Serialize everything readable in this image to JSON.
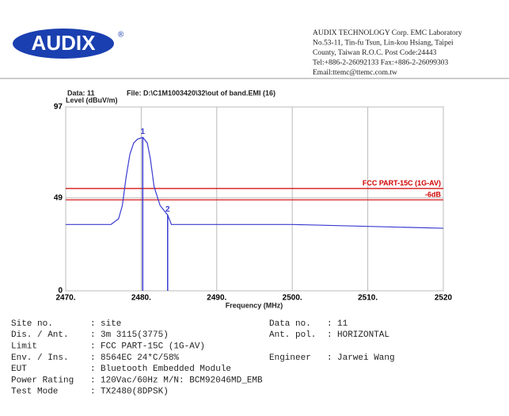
{
  "header": {
    "logo": "AUDIX",
    "registered": "®",
    "company": [
      "AUDIX TECHNOLOGY Corp.  EMC Laboratory",
      "No.53-11, Tin-fu Tsun, Lin-kou Hsiang, Taipei",
      "County, Taiwan R.O.C.  Post Code:24443",
      "Tel:+886-2-26092133  Fax:+886-2-26099303",
      "Email:ttemc@ttemc.com.tw"
    ]
  },
  "chart_data": {
    "type": "line",
    "data_label": "Data: 11",
    "file": "File: D:\\C1M1003420\\32\\out of band.EMI  (16)",
    "y_label": "Level (dBuV/m)",
    "x_label": "Frequency (MHz)",
    "xlim": [
      2470,
      2520
    ],
    "xticks": [
      {
        "value": 2470,
        "label": "2470."
      },
      {
        "value": 2480,
        "label": "2480."
      },
      {
        "value": 2490,
        "label": "2490."
      },
      {
        "value": 2500,
        "label": "2500."
      },
      {
        "value": 2510,
        "label": "2510."
      },
      {
        "value": 2520,
        "label": "2520"
      }
    ],
    "ylim": [
      0,
      97
    ],
    "yticks": [
      0,
      49,
      97
    ],
    "grid": true,
    "trace": {
      "color": "#3a3ad0",
      "x": [
        2470,
        2476,
        2477,
        2477.5,
        2478,
        2478.5,
        2479,
        2479.5,
        2480.2,
        2480.8,
        2481.2,
        2481.7,
        2482.5,
        2483.5,
        2484,
        2490,
        2500,
        2510,
        2520
      ],
      "values": [
        35,
        35,
        38,
        45,
        60,
        72,
        78,
        80,
        81,
        78,
        70,
        55,
        45,
        40,
        35,
        35,
        35,
        34,
        33
      ]
    },
    "limits": [
      {
        "name": "FCC PART-15C (1G-AV)",
        "value": 54,
        "color": "#d00000"
      },
      {
        "name": "-6dB",
        "value": 48,
        "color": "#d00000"
      }
    ],
    "markers": [
      {
        "label": "1",
        "x": 2480.2,
        "y": 81
      },
      {
        "label": "2",
        "x": 2483.5,
        "y": 40
      }
    ]
  },
  "info": {
    "left": [
      [
        "Site no.",
        ":",
        "site"
      ],
      [
        "Dis. / Ant.",
        ":",
        "3m   3115(3775)"
      ],
      [
        "Limit",
        ":",
        "FCC PART-15C (1G-AV)"
      ],
      [
        "Env. / Ins.",
        ":",
        "8564EC 24*C/58%"
      ],
      [
        "EUT",
        ":",
        "Bluetooth Embedded Module"
      ],
      [
        "Power Rating",
        ":",
        "120Vac/60Hz M/N: BCM92046MD_EMB"
      ],
      [
        "Test Mode",
        ":",
        "TX2480(8DPSK)"
      ]
    ],
    "right": [
      [
        "Data no.",
        ":",
        "11"
      ],
      [
        "Ant. pol.",
        ":",
        "HORIZONTAL"
      ],
      null,
      [
        "Engineer",
        ":",
        "Jarwei Wang"
      ]
    ]
  }
}
